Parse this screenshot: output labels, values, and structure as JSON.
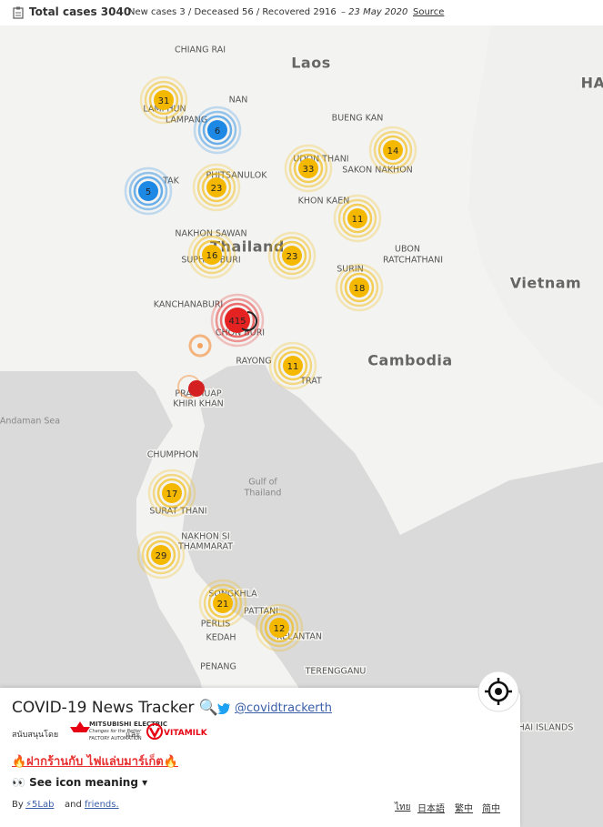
{
  "header": {
    "title": "Total cases 3040",
    "stats": "New cases 3 / Deceased 56 / Recovered 2916",
    "date": "– 23 May 2020",
    "source": "Source"
  },
  "map": {
    "labels": [
      "CHIANG RAI",
      "Laos",
      "HA",
      "NAN",
      "LAMPHUN",
      "LAMPANG",
      "BUENG KAN",
      "UDON THANI",
      "SAKON NAKHON",
      "PHITSANULOK",
      "TAK",
      "KHON KAEN",
      "NAKHON SAWAN",
      "Thailand",
      "UBON",
      "RATCHATHANI",
      "SUPHAN BURI",
      "SURIN",
      "Vietnam",
      "KANCHANABURI",
      "CHON BURI",
      "RAYONG",
      "TRAT",
      "Cambodia",
      "PRACHUAP",
      "KHIRI KHAN",
      "Andaman Sea",
      "CHUMPHON",
      "Gulf of",
      "Thailand",
      "SURAT THANI",
      "NAKHON SI",
      "THAMMARAT",
      "SONGKHLA",
      "PATTANI",
      "PERLIS",
      "KEDAH",
      "KELANTAN",
      "PENANG",
      "TERENGGANU",
      "HAI ISLANDS"
    ],
    "clusters": [
      31,
      6,
      5,
      23,
      33,
      14,
      11,
      16,
      23,
      18,
      415,
      11,
      17,
      29,
      21,
      12
    ]
  },
  "panel": {
    "title": "COVID-19 News Tracker 🔍",
    "twitter": "@covidtrackerth",
    "sponsor_prefix": "สนับสนุนโดย",
    "sponsor_1": "MITSUBISHI ELECTRIC",
    "sponsor_1_tagline": "Changes for the Better",
    "sponsor_1_sub": "FACTORY AUTOMATION",
    "and": "และ",
    "sponsor_2": "VITAMILK",
    "promo": "🔥ฝากร้านกับ ไฟแล่บมาร์เก็ต🔥",
    "icon_meaning": "👀 See icon meaning ▾",
    "by": "By",
    "lab": "⚡5Lab",
    "and_en": "and",
    "friends": "friends.",
    "languages": [
      "ไทย",
      "日本語",
      "繁中",
      "简中"
    ]
  }
}
